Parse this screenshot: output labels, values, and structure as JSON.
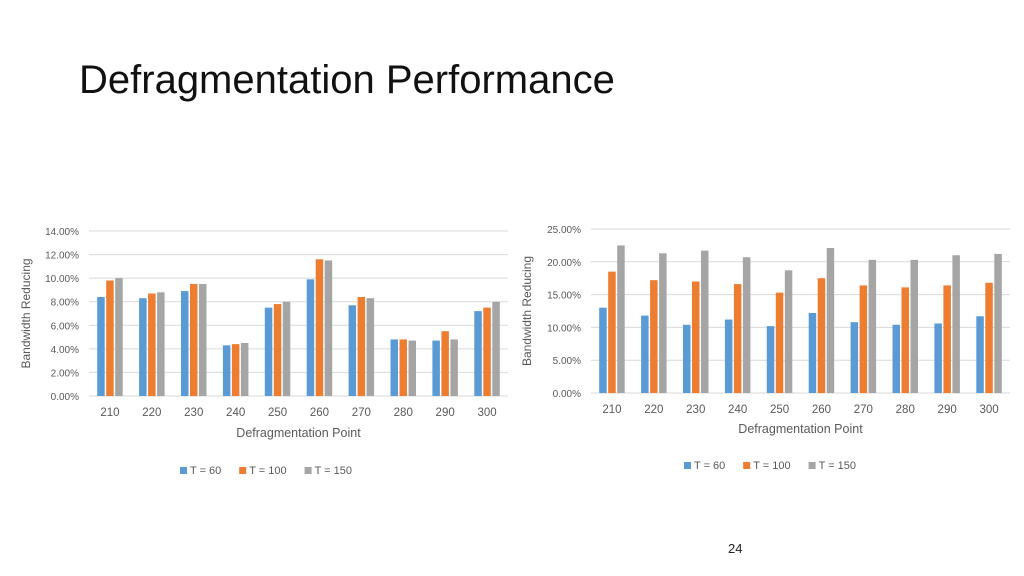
{
  "slide": {
    "title": "Defragmentation Performance",
    "page_number": "24"
  },
  "colors": {
    "series": [
      "#5b9bd5",
      "#ed7d31",
      "#a5a5a5"
    ],
    "grid": "#d9d9d9",
    "axis_text": "#595959"
  },
  "chart_data": [
    {
      "type": "bar",
      "title": "",
      "xlabel": "Defragmentation Point",
      "ylabel": "Bandwidth Reducing",
      "categories": [
        "210",
        "220",
        "230",
        "240",
        "250",
        "260",
        "270",
        "280",
        "290",
        "300"
      ],
      "ylim": [
        0,
        14
      ],
      "yticks": [
        0,
        2,
        4,
        6,
        8,
        10,
        12,
        14
      ],
      "ytick_labels": [
        "0.00%",
        "2.00%",
        "4.00%",
        "6.00%",
        "8.00%",
        "10.00%",
        "12.00%",
        "14.00%"
      ],
      "grid": true,
      "legend": "bottom",
      "series": [
        {
          "name": "T = 60",
          "values": [
            8.4,
            8.3,
            8.9,
            4.3,
            7.5,
            9.9,
            7.7,
            4.8,
            4.7,
            7.2
          ]
        },
        {
          "name": "T = 100",
          "values": [
            9.8,
            8.7,
            9.5,
            4.4,
            7.8,
            11.6,
            8.4,
            4.8,
            5.5,
            7.5
          ]
        },
        {
          "name": "T = 150",
          "values": [
            10.0,
            8.8,
            9.5,
            4.5,
            8.0,
            11.5,
            8.3,
            4.7,
            4.8,
            8.0
          ]
        }
      ]
    },
    {
      "type": "bar",
      "title": "",
      "xlabel": "Defragmentation Point",
      "ylabel": "Bandwidth Reducing",
      "categories": [
        "210",
        "220",
        "230",
        "240",
        "250",
        "260",
        "270",
        "280",
        "290",
        "300"
      ],
      "ylim": [
        0,
        25
      ],
      "yticks": [
        0,
        5,
        10,
        15,
        20,
        25
      ],
      "ytick_labels": [
        "0.00%",
        "5.00%",
        "10.00%",
        "15.00%",
        "20.00%",
        "25.00%"
      ],
      "grid": true,
      "legend": "bottom",
      "series": [
        {
          "name": "T = 60",
          "values": [
            13.0,
            11.8,
            10.4,
            11.2,
            10.2,
            12.2,
            10.8,
            10.4,
            10.6,
            11.7
          ]
        },
        {
          "name": "T = 100",
          "values": [
            18.5,
            17.2,
            17.0,
            16.6,
            15.3,
            17.5,
            16.4,
            16.1,
            16.4,
            16.8
          ]
        },
        {
          "name": "T = 150",
          "values": [
            22.5,
            21.3,
            21.7,
            20.7,
            18.7,
            22.1,
            20.3,
            20.3,
            21.0,
            21.2
          ]
        }
      ]
    }
  ]
}
